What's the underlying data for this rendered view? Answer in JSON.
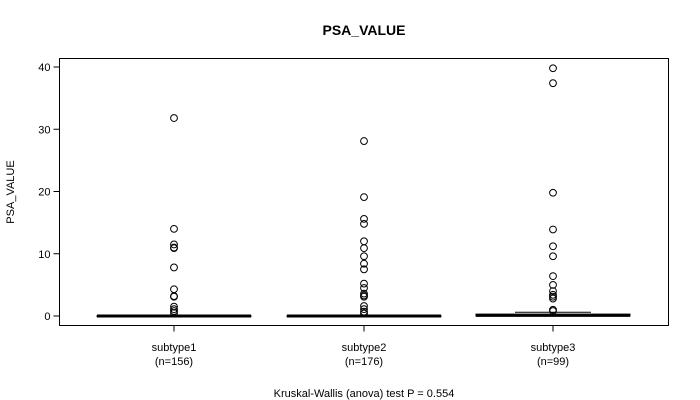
{
  "chart_data": {
    "type": "boxplot",
    "title": "PSA_VALUE",
    "ylabel": "PSA_VALUE",
    "xlabel": "",
    "ylim": [
      -1.5,
      41
    ],
    "yticks": [
      0,
      10,
      20,
      30,
      40
    ],
    "grid": false,
    "categories": [
      {
        "label": "subtype1",
        "n_label": "(n=156)"
      },
      {
        "label": "subtype2",
        "n_label": "(n=176)"
      },
      {
        "label": "subtype3",
        "n_label": "(n=99)"
      }
    ],
    "series": [
      {
        "category": "subtype1",
        "q1": 0,
        "median": 0,
        "q3": 0,
        "whisker_low": 0,
        "whisker_high": 0,
        "outliers": [
          31.8,
          14.0,
          11.5,
          11.0,
          10.9,
          7.8,
          4.3,
          3.2,
          3.1,
          1.5,
          1.1,
          0.8,
          0.5
        ]
      },
      {
        "category": "subtype2",
        "q1": 0,
        "median": 0,
        "q3": 0,
        "whisker_low": 0,
        "whisker_high": 0,
        "outliers": [
          28.1,
          19.1,
          15.6,
          14.8,
          12.0,
          10.9,
          9.6,
          8.4,
          7.5,
          5.2,
          4.5,
          3.6,
          3.3,
          3.1,
          1.6,
          1.1,
          0.7,
          0.4
        ]
      },
      {
        "category": "subtype3",
        "q1": 0,
        "median": 0.1,
        "q3": 0.3,
        "whisker_low": 0,
        "whisker_high": 0.6,
        "outliers": [
          39.8,
          37.4,
          19.8,
          13.9,
          11.2,
          9.6,
          6.4,
          5.0,
          4.0,
          3.4,
          3.1,
          2.8,
          1.0,
          0.8
        ]
      }
    ],
    "footer": "Kruskal-Wallis (anova) test P = 0.554"
  }
}
